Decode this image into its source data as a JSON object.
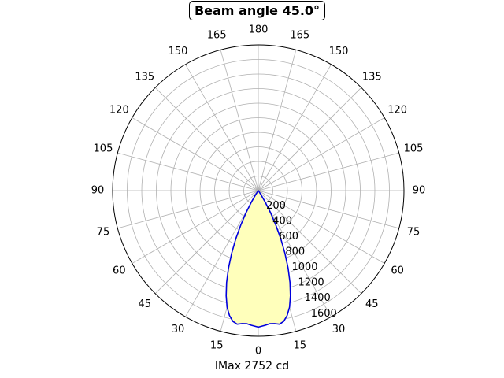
{
  "chart_data": {
    "type": "polar-line",
    "title": "Beam angle 45.0°",
    "xlabel": "IMax 2752 cd",
    "angle_ticks_left": [
      "0",
      "15",
      "30",
      "45",
      "60",
      "75",
      "90",
      "105",
      "120",
      "135",
      "150",
      "165",
      "180"
    ],
    "angle_ticks_right": [
      "15",
      "30",
      "45",
      "60",
      "75",
      "90",
      "105",
      "120",
      "135",
      "150",
      "165"
    ],
    "radial_ticks": [
      "200",
      "400",
      "600",
      "800",
      "1000",
      "1200",
      "1400",
      "1600"
    ],
    "radial_tick_values": [
      200,
      400,
      600,
      800,
      1000,
      1200,
      1400,
      1600
    ],
    "rlim": [
      0,
      1750
    ],
    "grid": true,
    "line_color": "#0000dd",
    "fill_color": "#ffffbb",
    "series": [
      {
        "values": [
          {
            "angle": 0,
            "r": 1640
          },
          {
            "angle": 3,
            "r": 1620
          },
          {
            "angle": 5,
            "r": 1605
          },
          {
            "angle": 7,
            "r": 1610
          },
          {
            "angle": 9,
            "r": 1625
          },
          {
            "angle": 11,
            "r": 1600
          },
          {
            "angle": 13,
            "r": 1540
          },
          {
            "angle": 15,
            "r": 1450
          },
          {
            "angle": 17,
            "r": 1320
          },
          {
            "angle": 19,
            "r": 1170
          },
          {
            "angle": 21,
            "r": 1000
          },
          {
            "angle": 23,
            "r": 820
          },
          {
            "angle": 25,
            "r": 640
          },
          {
            "angle": 27,
            "r": 460
          },
          {
            "angle": 29,
            "r": 300
          },
          {
            "angle": 31,
            "r": 160
          },
          {
            "angle": 33,
            "r": 60
          },
          {
            "angle": 35,
            "r": 0
          }
        ]
      }
    ]
  }
}
